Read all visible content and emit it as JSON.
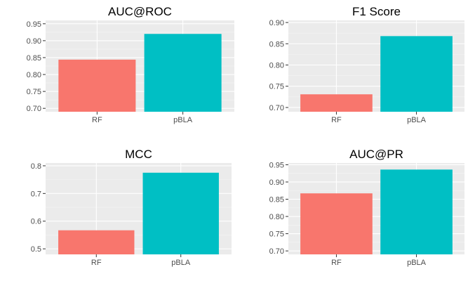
{
  "colors": {
    "RF": "#F8766D",
    "pBLA": "#00BFC4",
    "panel_bg": "#EBEBEB",
    "grid_major": "#FFFFFF",
    "grid_minor": "#F5F5F5"
  },
  "chart_data": [
    {
      "type": "bar",
      "title": "AUC@ROC",
      "categories": [
        "RF",
        "pBLA"
      ],
      "values": [
        0.844,
        0.92
      ],
      "ylim": [
        0.69,
        0.96
      ],
      "yticks": [
        0.7,
        0.75,
        0.8,
        0.85,
        0.9,
        0.95
      ],
      "ytick_labels": [
        "0.70",
        "0.75",
        "0.80",
        "0.85",
        "0.90",
        "0.95"
      ],
      "xlabel": "",
      "ylabel": "",
      "grid": true
    },
    {
      "type": "bar",
      "title": "F1 Score",
      "categories": [
        "RF",
        "pBLA"
      ],
      "values": [
        0.731,
        0.868
      ],
      "ylim": [
        0.69,
        0.905
      ],
      "yticks": [
        0.7,
        0.75,
        0.8,
        0.85,
        0.9
      ],
      "ytick_labels": [
        "0.70",
        "0.75",
        "0.80",
        "0.85",
        "0.90"
      ],
      "xlabel": "",
      "ylabel": "",
      "grid": true
    },
    {
      "type": "bar",
      "title": "MCC",
      "categories": [
        "RF",
        "pBLA"
      ],
      "values": [
        0.567,
        0.775
      ],
      "ylim": [
        0.48,
        0.81
      ],
      "yticks": [
        0.5,
        0.6,
        0.7,
        0.8
      ],
      "ytick_labels": [
        "0.5",
        "0.6",
        "0.7",
        "0.8"
      ],
      "xlabel": "",
      "ylabel": "",
      "grid": true
    },
    {
      "type": "bar",
      "title": "AUC@PR",
      "categories": [
        "RF",
        "pBLA"
      ],
      "values": [
        0.867,
        0.936
      ],
      "ylim": [
        0.69,
        0.955
      ],
      "yticks": [
        0.7,
        0.75,
        0.8,
        0.85,
        0.9,
        0.95
      ],
      "ytick_labels": [
        "0.70",
        "0.75",
        "0.80",
        "0.85",
        "0.90",
        "0.95"
      ],
      "xlabel": "",
      "ylabel": "",
      "grid": true
    }
  ]
}
